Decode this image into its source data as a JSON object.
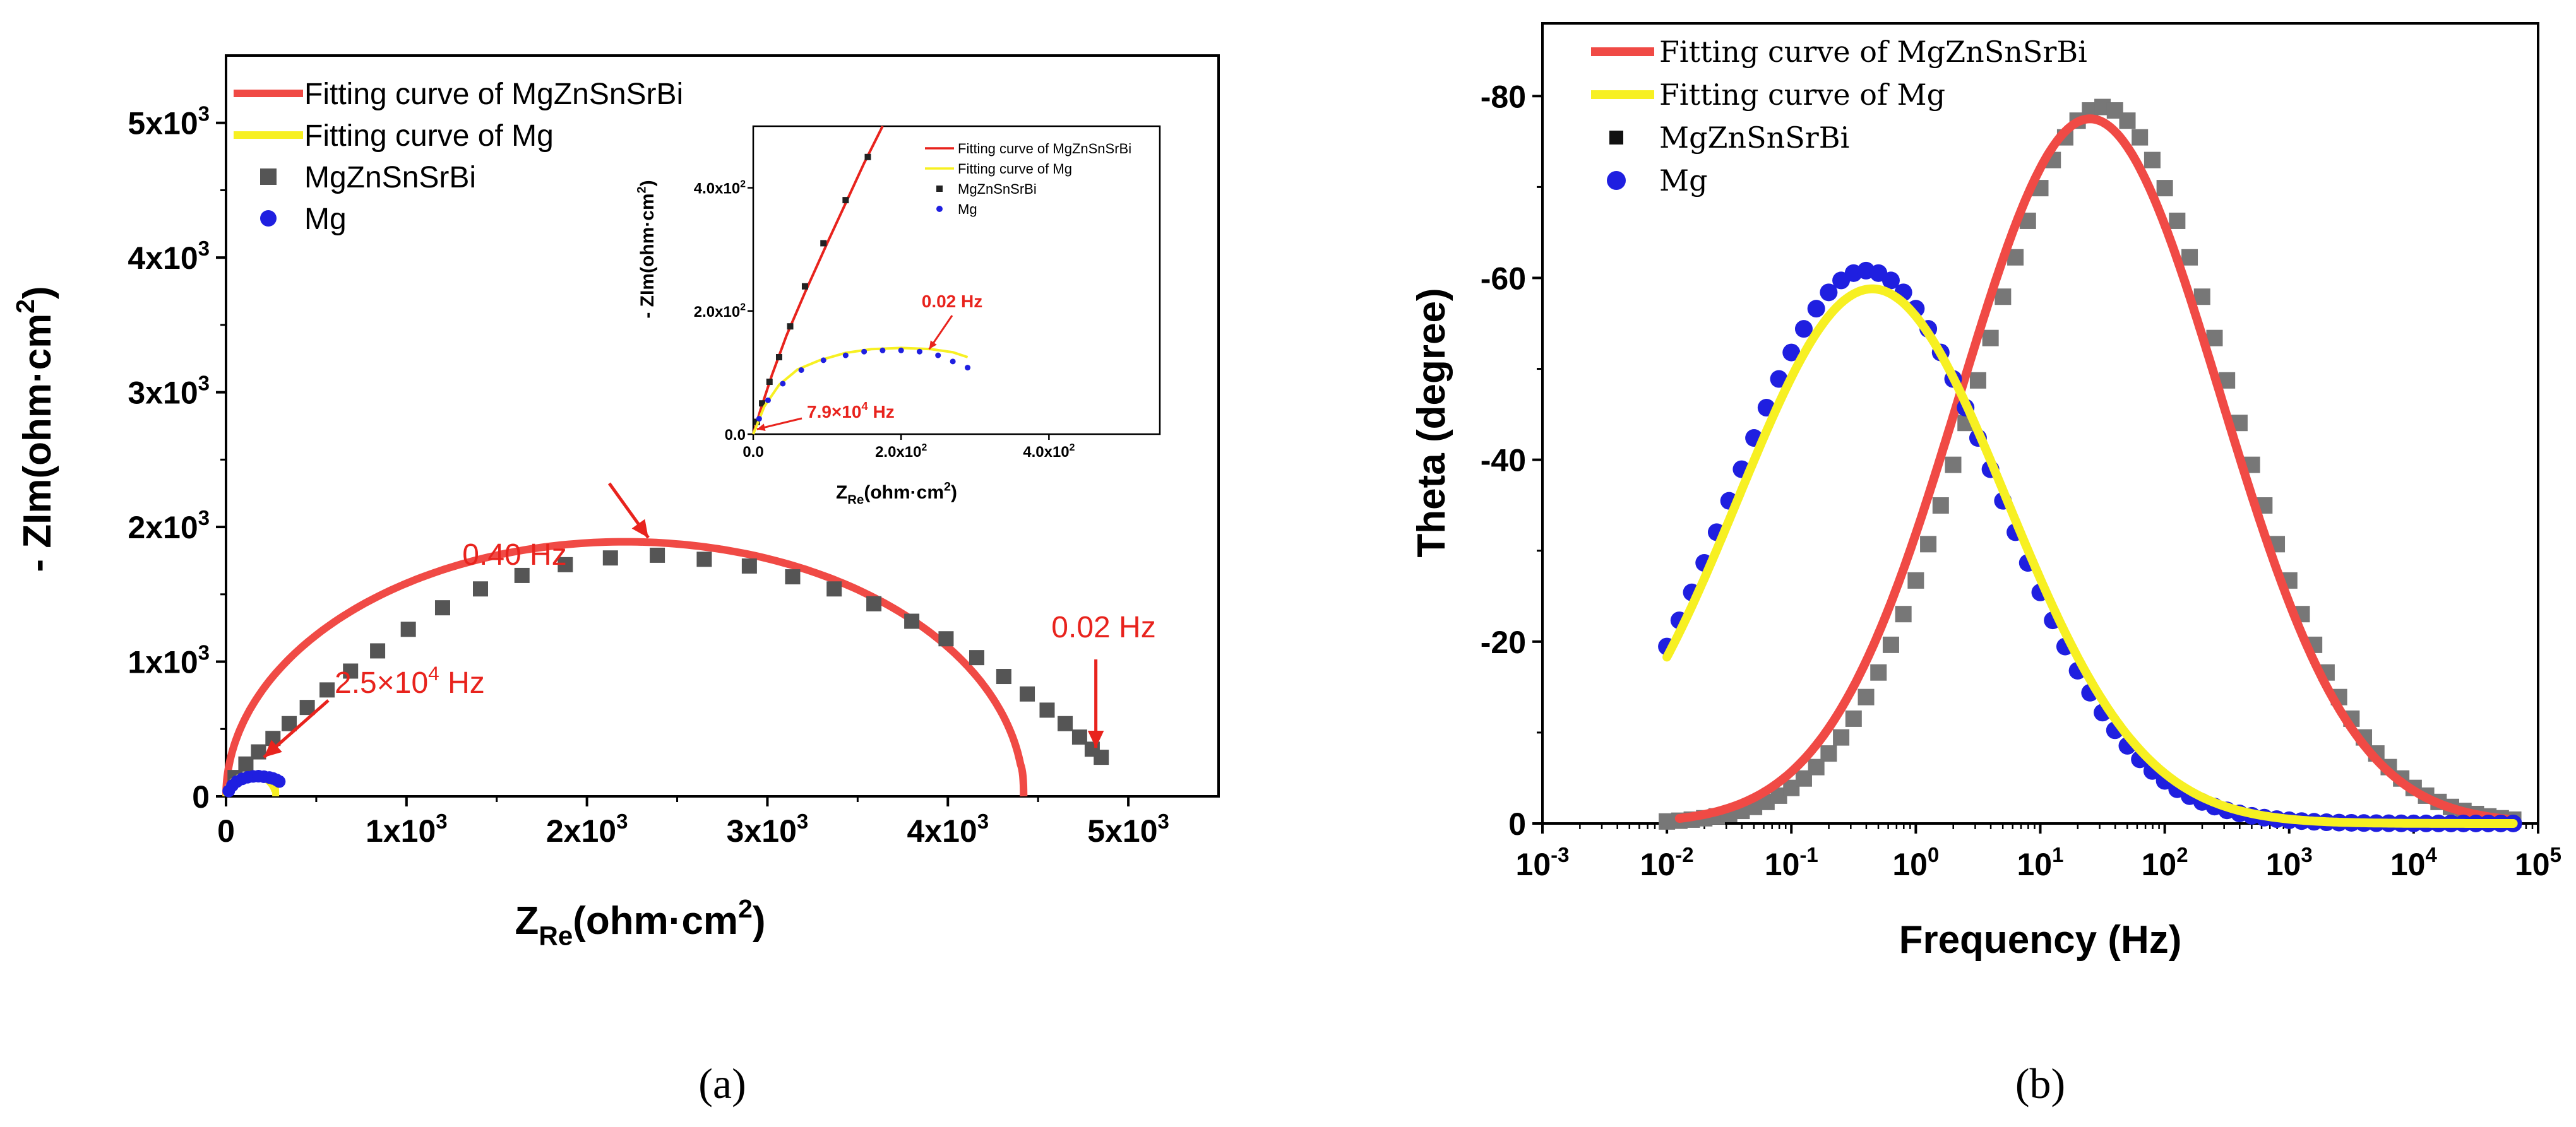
{
  "chart_data": [
    {
      "id": "a",
      "type": "scatter",
      "caption": "(a)",
      "xlabel": {
        "main": "Z",
        "sub": "Re",
        "unit": "(ohm·cm",
        "sup": "2",
        "close": ")"
      },
      "ylabel": {
        "main": "- ZIm(ohm·cm",
        "sup": "2",
        "close": ")"
      },
      "xlim": [
        0,
        5500
      ],
      "ylim": [
        0,
        5500
      ],
      "xticks": [
        {
          "v": 0,
          "label": "0"
        },
        {
          "v": 1000,
          "label": "1x10",
          "exp": "3"
        },
        {
          "v": 2000,
          "label": "2x10",
          "exp": "3"
        },
        {
          "v": 3000,
          "label": "3x10",
          "exp": "3"
        },
        {
          "v": 4000,
          "label": "4x10",
          "exp": "3"
        },
        {
          "v": 5000,
          "label": "5x10",
          "exp": "3"
        }
      ],
      "yticks": [
        {
          "v": 0,
          "label": "0"
        },
        {
          "v": 1000,
          "label": "1x10",
          "exp": "3"
        },
        {
          "v": 2000,
          "label": "2x10",
          "exp": "3"
        },
        {
          "v": 3000,
          "label": "3x10",
          "exp": "3"
        },
        {
          "v": 4000,
          "label": "4x10",
          "exp": "3"
        },
        {
          "v": 5000,
          "label": "5x10",
          "exp": "3"
        }
      ],
      "legend": [
        {
          "label": "Fitting curve of MgZnSnSrBi",
          "kind": "line",
          "color": "#f04a45"
        },
        {
          "label": "Fitting curve of Mg",
          "kind": "line",
          "color": "#f7f022"
        },
        {
          "label": "MgZnSnSrBi",
          "kind": "square",
          "color": "#555555"
        },
        {
          "label": "Mg",
          "kind": "circle",
          "color": "#1f1fe0"
        }
      ],
      "series": [
        {
          "name": "Fitting curve of MgZnSnSrBi",
          "kind": "semicircle",
          "color": "#f04a45",
          "x_start": 0,
          "x_end": 4420,
          "peak": 1890,
          "end_y": 240
        },
        {
          "name": "MgZnSnSrBi",
          "kind": "points",
          "color": "#555555",
          "x": [
            50,
            110,
            180,
            260,
            350,
            450,
            560,
            690,
            840,
            1010,
            1200,
            1410,
            1640,
            1880,
            2130,
            2390,
            2650,
            2900,
            3140,
            3370,
            3590,
            3800,
            3990,
            4160,
            4310,
            4440,
            4550,
            4650,
            4730,
            4800,
            4850
          ],
          "y": [
            140,
            240,
            330,
            430,
            540,
            660,
            790,
            930,
            1080,
            1240,
            1400,
            1540,
            1640,
            1720,
            1770,
            1790,
            1760,
            1710,
            1630,
            1540,
            1430,
            1300,
            1170,
            1030,
            890,
            760,
            640,
            540,
            440,
            350,
            290
          ]
        },
        {
          "name": "Fitting curve of Mg",
          "kind": "semicircle",
          "color": "#f7f022",
          "x_start": 0,
          "x_end": 275,
          "peak": 160,
          "end_y": 115
        },
        {
          "name": "Mg",
          "kind": "points",
          "color": "#1f1fe0",
          "x": [
            15,
            35,
            60,
            90,
            120,
            150,
            180,
            210,
            240,
            260,
            280,
            295
          ],
          "y": [
            40,
            80,
            110,
            130,
            142,
            148,
            150,
            146,
            140,
            133,
            122,
            110
          ]
        }
      ],
      "annotations": [
        {
          "text": "0.40 Hz",
          "arrow_to": [
            2340,
            1920
          ]
        },
        {
          "text": "0.02 Hz",
          "arrow_to": [
            4820,
            360
          ]
        },
        {
          "text": "2.5×10",
          "exp": "4",
          "tail": " Hz",
          "arrow_to": [
            210,
            290
          ]
        }
      ],
      "inset": {
        "xlabel": {
          "main": "Z",
          "sub": "Re",
          "unit": "(ohm·cm",
          "sup": "2",
          "close": ")"
        },
        "ylabel": {
          "main": "- ZIm(ohm·cm",
          "sup": "2",
          "close": ")"
        },
        "xlim": [
          0,
          550
        ],
        "ylim": [
          0,
          500
        ],
        "xticks": [
          {
            "v": 0,
            "label": "0.0"
          },
          {
            "v": 200,
            "label": "2.0x10",
            "exp": "2"
          },
          {
            "v": 400,
            "label": "4.0x10",
            "exp": "2"
          }
        ],
        "yticks": [
          {
            "v": 0,
            "label": "0.0"
          },
          {
            "v": 200,
            "label": "2.0x10",
            "exp": "2"
          },
          {
            "v": 400,
            "label": "4.0x10",
            "exp": "2"
          }
        ],
        "legend": [
          {
            "label": "Fitting curve of MgZnSnSrBi",
            "kind": "line",
            "color": "#e8231d"
          },
          {
            "label": "Fitting curve of Mg",
            "kind": "line",
            "color": "#f7f022"
          },
          {
            "label": "MgZnSnSrBi",
            "kind": "square",
            "color": "#222222"
          },
          {
            "label": "Mg",
            "kind": "circle",
            "color": "#1f1fe0"
          }
        ],
        "series": [
          {
            "name": "Fitting curve of MgZnSnSrBi",
            "kind": "curve",
            "color": "#e8231d",
            "x": [
              0,
              10,
              25,
              45,
              70,
              100,
              125,
              150,
              175
            ],
            "y": [
              0,
              40,
              95,
              160,
              230,
              310,
              375,
              440,
              500
            ]
          },
          {
            "name": "MgZnSnSrBi",
            "kind": "points",
            "color": "#222222",
            "x": [
              5,
              12,
              22,
              35,
              50,
              70,
              95,
              125,
              155
            ],
            "y": [
              20,
              50,
              85,
              125,
              175,
              240,
              310,
              380,
              450
            ]
          },
          {
            "name": "Fitting curve of Mg",
            "kind": "curve",
            "color": "#f7f022",
            "x": [
              0,
              15,
              35,
              60,
              90,
              125,
              160,
              200,
              240,
              270,
              290
            ],
            "y": [
              0,
              45,
              80,
              105,
              120,
              132,
              138,
              140,
              138,
              133,
              125
            ]
          },
          {
            "name": "Mg",
            "kind": "points",
            "color": "#1f1fe0",
            "x": [
              8,
              20,
              40,
              65,
              95,
              125,
              150,
              175,
              200,
              225,
              250,
              270,
              290
            ],
            "y": [
              25,
              55,
              82,
              104,
              120,
              128,
              134,
              136,
              136,
              134,
              128,
              118,
              108
            ]
          }
        ],
        "annotations": [
          {
            "text": "0.02 Hz",
            "arrow_to": [
              238,
              138
            ]
          },
          {
            "text": "7.9×10",
            "exp": "4",
            "tail": " Hz",
            "arrow_to": [
              5,
              8
            ]
          }
        ]
      }
    },
    {
      "id": "b",
      "type": "scatter",
      "caption": "(b)",
      "xscale": "log",
      "xlabel": {
        "main": "Frequency (Hz)"
      },
      "ylabel": {
        "main": "Theta (degree)"
      },
      "xlim": [
        0.001,
        100000
      ],
      "ylim": [
        0,
        -90
      ],
      "xticks": [
        {
          "v": 0.001,
          "label": "10",
          "exp": "-3"
        },
        {
          "v": 0.01,
          "label": "10",
          "exp": "-2"
        },
        {
          "v": 0.1,
          "label": "10",
          "exp": "-1"
        },
        {
          "v": 1,
          "label": "10",
          "exp": "0"
        },
        {
          "v": 10,
          "label": "10",
          "exp": "1"
        },
        {
          "v": 100,
          "label": "10",
          "exp": "2"
        },
        {
          "v": 1000,
          "label": "10",
          "exp": "3"
        },
        {
          "v": 10000,
          "label": "10",
          "exp": "4"
        },
        {
          "v": 100000,
          "label": "10",
          "exp": "5"
        }
      ],
      "yticks": [
        {
          "v": 0,
          "label": "0"
        },
        {
          "v": -20,
          "label": "-20"
        },
        {
          "v": -40,
          "label": "-40"
        },
        {
          "v": -60,
          "label": "-60"
        },
        {
          "v": -80,
          "label": "-80"
        }
      ],
      "legend": [
        {
          "label": "Fitting curve of MgZnSnSrBi",
          "kind": "line",
          "color": "#f04a45"
        },
        {
          "label": "Fitting curve of Mg",
          "kind": "line",
          "color": "#f7f022"
        },
        {
          "label": "MgZnSnSrBi",
          "kind": "square",
          "color": "#111111"
        },
        {
          "label": "Mg",
          "kind": "circle",
          "color": "#1f1fe0"
        }
      ],
      "series": [
        {
          "name": "MgZnSnSrBi",
          "kind": "gauss",
          "color": "#777777",
          "marker": "square",
          "peak": -78.8,
          "center_log": 1.5,
          "sigma": 1.02,
          "from_log": -2,
          "to_log": 4.8,
          "step": 0.1
        },
        {
          "name": "Fitting curve of MgZnSnSrBi",
          "kind": "gauss",
          "color": "#f04a45",
          "marker": "line",
          "peak": -77.5,
          "center_log": 1.4,
          "sigma": 1.05,
          "from_log": -1.9,
          "to_log": 4.82,
          "step": 0.02
        },
        {
          "name": "Mg",
          "kind": "gauss",
          "color": "#1f1fe0",
          "marker": "circle",
          "peak": -60.8,
          "center_log": -0.4,
          "sigma": 1.06,
          "from_log": -2,
          "to_log": 4.8,
          "step": 0.1
        },
        {
          "name": "Fitting curve of Mg",
          "kind": "gauss",
          "color": "#f7f022",
          "marker": "line",
          "peak": -58.8,
          "center_log": -0.35,
          "sigma": 1.08,
          "from_log": -2,
          "to_log": 4.8,
          "step": 0.02
        }
      ]
    }
  ]
}
